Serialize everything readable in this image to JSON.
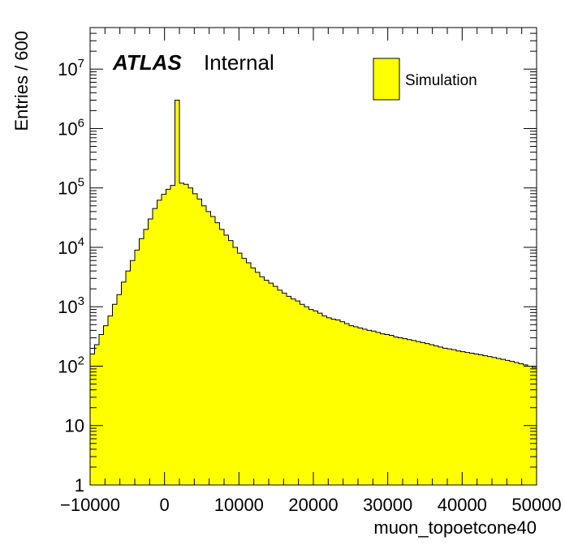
{
  "chart_data": {
    "type": "histogram",
    "xlabel": "muon_topoetcone40",
    "ylabel": "Entries / 600",
    "bin_width": 600,
    "xlim": [
      -10000,
      50000
    ],
    "ylim": [
      1,
      50000000
    ],
    "yscale": "log",
    "x_ticks": [
      "−10000",
      "0",
      "10000",
      "20000",
      "30000",
      "40000",
      "50000"
    ],
    "y_ticks": [
      {
        "base": "1",
        "exp": ""
      },
      {
        "base": "10",
        "exp": ""
      },
      {
        "base": "10",
        "exp": "2"
      },
      {
        "base": "10",
        "exp": "3"
      },
      {
        "base": "10",
        "exp": "4"
      },
      {
        "base": "10",
        "exp": "5"
      },
      {
        "base": "10",
        "exp": "6"
      },
      {
        "base": "10",
        "exp": "7"
      }
    ],
    "atlas_label": "ATLAS",
    "atlas_status": "Internal",
    "legend": {
      "label": "Simulation",
      "placement": "top-right"
    },
    "colors": {
      "fill": "#ffff00",
      "line": "#000000"
    },
    "series": [
      {
        "values": [
          160,
          230,
          340,
          480,
          700,
          1100,
          1600,
          2600,
          4000,
          6000,
          9000,
          14000,
          20000,
          30000,
          45000,
          62000,
          78000,
          95000,
          110000,
          3000000,
          120000,
          115000,
          100000,
          80000,
          65000,
          50000,
          40000,
          33000,
          26000,
          20000,
          16000,
          13000,
          10000,
          8000,
          6500,
          5500,
          4500,
          3800,
          3200,
          2800,
          2500,
          2200,
          1900,
          1700,
          1500,
          1350,
          1250,
          1100,
          1000,
          900,
          850,
          780,
          700,
          650,
          620,
          600,
          560,
          520,
          480,
          460,
          440,
          420,
          400,
          390,
          370,
          350,
          340,
          330,
          310,
          300,
          290,
          280,
          270,
          260,
          250,
          240,
          230,
          220,
          210,
          200,
          195,
          190,
          180,
          175,
          170,
          165,
          160,
          155,
          150,
          145,
          140,
          135,
          130,
          125,
          120,
          115,
          110,
          105,
          100,
          95,
          90
        ]
      }
    ]
  }
}
